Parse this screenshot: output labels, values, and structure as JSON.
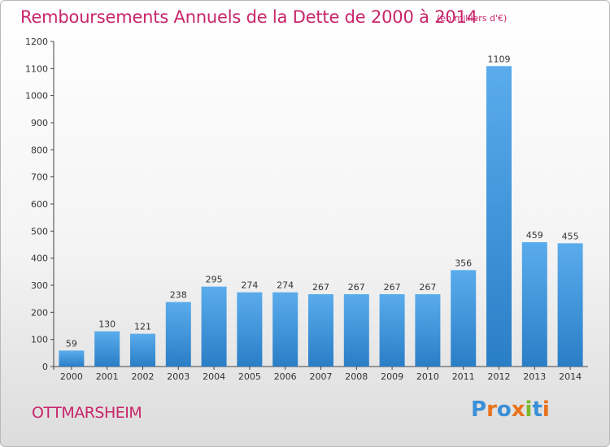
{
  "header": {
    "title": "Remboursements Annuels de la Dette de 2000 à 2014",
    "unit": "(en milliers d'€)"
  },
  "footer": {
    "commune": "OTTMARSHEIM",
    "logo": "Proxiti"
  },
  "colors": {
    "bar_light": "#5aacec",
    "bar_dark": "#2a7ec6",
    "text_accent": "#c8256a",
    "logo_letters": [
      "#3a8fd8",
      "#e8721c",
      "#3a8fd8",
      "#e8721c",
      "#7ab82a",
      "#3a8fd8",
      "#e8721c"
    ]
  },
  "chart_data": {
    "type": "bar",
    "categories": [
      "2000",
      "2001",
      "2002",
      "2003",
      "2004",
      "2005",
      "2006",
      "2007",
      "2008",
      "2009",
      "2010",
      "2011",
      "2012",
      "2013",
      "2014"
    ],
    "values": [
      59,
      130,
      121,
      238,
      295,
      274,
      274,
      267,
      267,
      267,
      267,
      356,
      1109,
      459,
      455
    ],
    "ylim": [
      0,
      1200
    ],
    "yticks": [
      0,
      100,
      200,
      300,
      400,
      500,
      600,
      700,
      800,
      900,
      1000,
      1100,
      1200
    ],
    "grid": false
  }
}
